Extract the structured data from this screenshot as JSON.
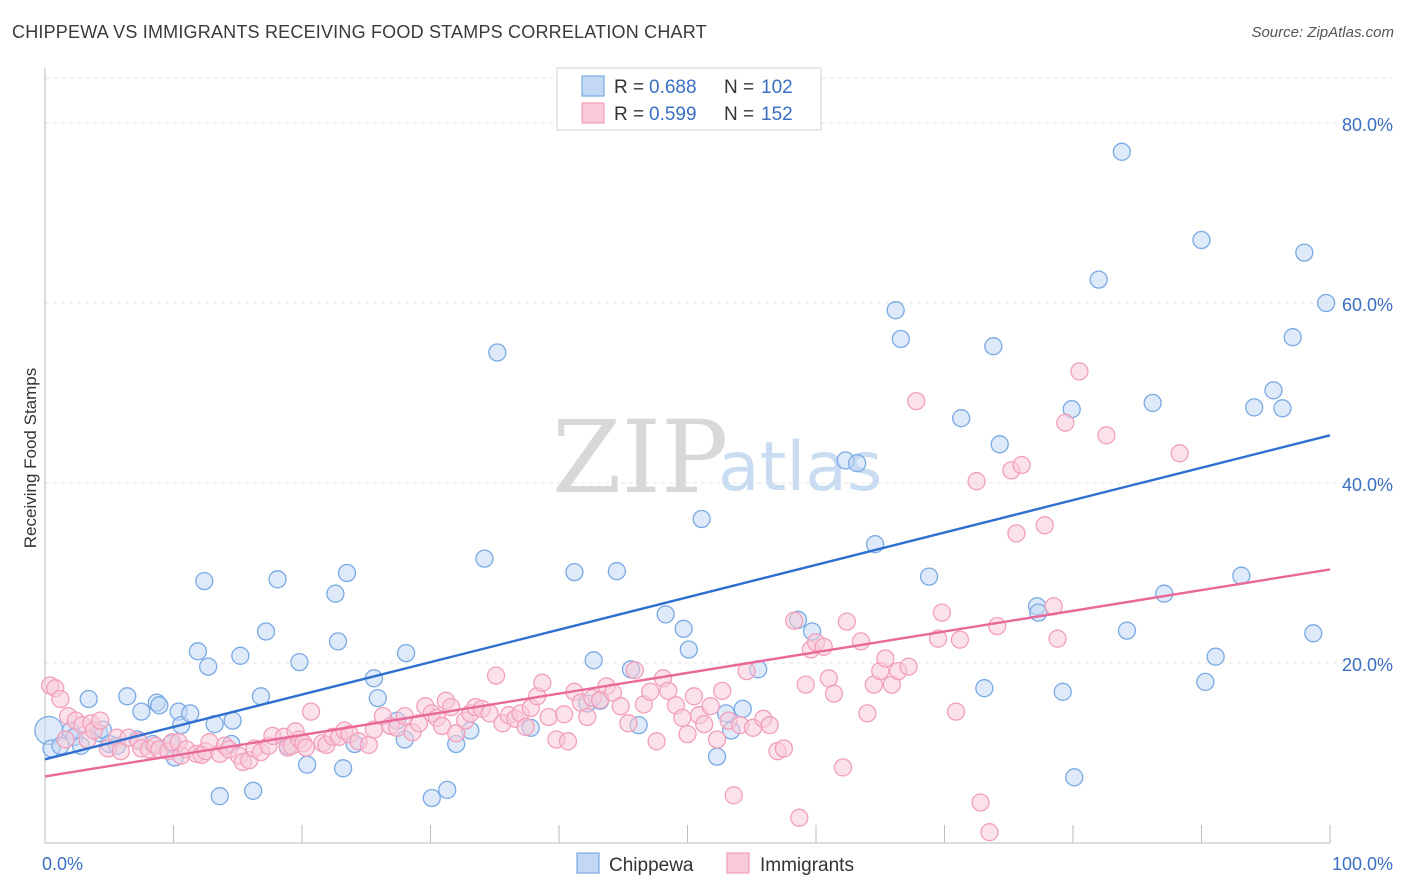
{
  "header": {
    "title": "CHIPPEWA VS IMMIGRANTS RECEIVING FOOD STAMPS CORRELATION CHART",
    "source": "Source: ZipAtlas.com"
  },
  "watermark": {
    "zip": "ZIP",
    "atlas": "atlas"
  },
  "legend": {
    "rows": [
      {
        "r_label": "R = ",
        "r_value": "0.688",
        "n_label": "N = ",
        "n_value": "102"
      },
      {
        "r_label": "R = ",
        "r_value": "0.599",
        "n_label": "N = ",
        "n_value": "152"
      }
    ]
  },
  "chart_data": {
    "type": "scatter",
    "title": "CHIPPEWA VS IMMIGRANTS RECEIVING FOOD STAMPS CORRELATION CHART",
    "xlabel": "",
    "ylabel": "Receiving Food Stamps",
    "xlim": [
      0,
      100
    ],
    "ylim": [
      0,
      85
    ],
    "x_tick_labels": [
      "0.0%",
      "100.0%"
    ],
    "y_ticks": [
      20,
      40,
      60,
      80
    ],
    "y_tick_labels": [
      "20.0%",
      "40.0%",
      "60.0%",
      "80.0%"
    ],
    "grid": true,
    "series": [
      {
        "name": "Chippewa",
        "color": "#7aaae4",
        "fill": "#c3d8f4",
        "trend": {
          "x0": 0,
          "y0": 9.3,
          "x1": 100,
          "y1": 45.3,
          "color": "#2f6fcf"
        },
        "points": [
          [
            0.3,
            12.5
          ],
          [
            0.5,
            10.5
          ],
          [
            1.2,
            10.8
          ],
          [
            2,
            12.5
          ],
          [
            2.3,
            11.8
          ],
          [
            2.8,
            10.8
          ],
          [
            3.4,
            16
          ],
          [
            4.2,
            12.2
          ],
          [
            4.5,
            12.6
          ],
          [
            5,
            11
          ],
          [
            5.6,
            10.8
          ],
          [
            6.4,
            16.3
          ],
          [
            7.2,
            11.5
          ],
          [
            7.5,
            14.6
          ],
          [
            8.4,
            11
          ],
          [
            8.7,
            15.6
          ],
          [
            8.9,
            15.3
          ],
          [
            9.8,
            11
          ],
          [
            10.1,
            9.5
          ],
          [
            10.4,
            14.6
          ],
          [
            10.6,
            13.1
          ],
          [
            11.3,
            14.4
          ],
          [
            11.9,
            21.3
          ],
          [
            12.4,
            29.1
          ],
          [
            12.7,
            19.6
          ],
          [
            13.2,
            13.2
          ],
          [
            13.6,
            5.2
          ],
          [
            14.5,
            11
          ],
          [
            14.6,
            13.6
          ],
          [
            15.2,
            20.8
          ],
          [
            16.2,
            5.8
          ],
          [
            16.8,
            16.3
          ],
          [
            17.2,
            23.5
          ],
          [
            18.1,
            29.3
          ],
          [
            18.9,
            10.8
          ],
          [
            19.8,
            20.1
          ],
          [
            20.4,
            8.7
          ],
          [
            22.6,
            27.7
          ],
          [
            22.8,
            22.4
          ],
          [
            23.2,
            8.3
          ],
          [
            23.5,
            30
          ],
          [
            24.1,
            11
          ],
          [
            25.6,
            18.3
          ],
          [
            25.9,
            16.1
          ],
          [
            27.4,
            13.6
          ],
          [
            28,
            11.5
          ],
          [
            28.1,
            21.1
          ],
          [
            30.1,
            5
          ],
          [
            31.3,
            5.9
          ],
          [
            32,
            11
          ],
          [
            33.1,
            12.5
          ],
          [
            34.2,
            31.6
          ],
          [
            35.2,
            54.5
          ],
          [
            37.8,
            12.8
          ],
          [
            41.2,
            30.1
          ],
          [
            42.2,
            15.5
          ],
          [
            42.7,
            20.3
          ],
          [
            43.2,
            15.8
          ],
          [
            44.5,
            30.2
          ],
          [
            45.6,
            19.3
          ],
          [
            46.2,
            13.1
          ],
          [
            48.3,
            25.4
          ],
          [
            49.7,
            23.8
          ],
          [
            50.1,
            21.5
          ],
          [
            51.1,
            36
          ],
          [
            52.3,
            9.6
          ],
          [
            53,
            14.4
          ],
          [
            53.4,
            12.5
          ],
          [
            54.3,
            14.9
          ],
          [
            55.5,
            19.3
          ],
          [
            58.6,
            24.8
          ],
          [
            59.7,
            23.5
          ],
          [
            62.3,
            42.5
          ],
          [
            63.2,
            42.2
          ],
          [
            64.6,
            33.2
          ],
          [
            66.2,
            59.2
          ],
          [
            66.6,
            56
          ],
          [
            68.8,
            29.6
          ],
          [
            71.3,
            47.2
          ],
          [
            73.1,
            17.2
          ],
          [
            73.8,
            55.2
          ],
          [
            74.3,
            44.3
          ],
          [
            77.2,
            26.3
          ],
          [
            77.3,
            25.6
          ],
          [
            79.2,
            16.8
          ],
          [
            79.9,
            48.2
          ],
          [
            80.1,
            7.3
          ],
          [
            82,
            62.6
          ],
          [
            83.8,
            76.8
          ],
          [
            84.2,
            23.6
          ],
          [
            86.2,
            48.9
          ],
          [
            87.1,
            27.7
          ],
          [
            90,
            67
          ],
          [
            90.3,
            17.9
          ],
          [
            91.1,
            20.7
          ],
          [
            93.1,
            29.7
          ],
          [
            94.1,
            48.4
          ],
          [
            95.6,
            50.3
          ],
          [
            96.3,
            48.3
          ],
          [
            97.1,
            56.2
          ],
          [
            98,
            65.6
          ],
          [
            98.7,
            23.3
          ],
          [
            99.7,
            60
          ]
        ]
      },
      {
        "name": "Immigrants",
        "color": "#f29fbb",
        "fill": "#f8cad9",
        "trend": {
          "x0": 0,
          "y0": 7.4,
          "x1": 100,
          "y1": 30.4,
          "color": "#e8689a"
        },
        "points": [
          [
            0.4,
            17.5
          ],
          [
            0.8,
            17.2
          ],
          [
            1.2,
            16
          ],
          [
            1.6,
            11.5
          ],
          [
            1.8,
            14.1
          ],
          [
            2.4,
            13.6
          ],
          [
            2.9,
            13.1
          ],
          [
            3.3,
            11.5
          ],
          [
            3.6,
            13.3
          ],
          [
            3.8,
            12.5
          ],
          [
            4.3,
            13.6
          ],
          [
            4.9,
            10.5
          ],
          [
            5.6,
            11.7
          ],
          [
            5.9,
            10.2
          ],
          [
            6.5,
            11.7
          ],
          [
            7.3,
            11.3
          ],
          [
            7.5,
            10.5
          ],
          [
            8.1,
            10.4
          ],
          [
            8.6,
            10.8
          ],
          [
            8.9,
            10.4
          ],
          [
            9.6,
            10.2
          ],
          [
            9.9,
            11.2
          ],
          [
            10.4,
            11.2
          ],
          [
            10.6,
            9.7
          ],
          [
            11,
            10.4
          ],
          [
            11.8,
            9.9
          ],
          [
            12.2,
            9.8
          ],
          [
            12.5,
            10.2
          ],
          [
            12.8,
            11.2
          ],
          [
            13.6,
            9.9
          ],
          [
            14,
            10.8
          ],
          [
            14.3,
            10.4
          ],
          [
            15.1,
            9.7
          ],
          [
            15.4,
            9
          ],
          [
            15.9,
            9.2
          ],
          [
            16.3,
            10.5
          ],
          [
            16.8,
            10.1
          ],
          [
            17.4,
            10.8
          ],
          [
            17.7,
            11.9
          ],
          [
            18.6,
            11.8
          ],
          [
            18.9,
            10.6
          ],
          [
            19.2,
            10.8
          ],
          [
            19.5,
            12.4
          ],
          [
            19.8,
            11.5
          ],
          [
            20.1,
            11.1
          ],
          [
            20.3,
            10.6
          ],
          [
            20.7,
            14.6
          ],
          [
            21.6,
            11.1
          ],
          [
            21.9,
            10.9
          ],
          [
            22.4,
            11.8
          ],
          [
            22.9,
            11.8
          ],
          [
            23.3,
            12.5
          ],
          [
            23.7,
            12.1
          ],
          [
            24.4,
            11.3
          ],
          [
            25.2,
            10.9
          ],
          [
            25.6,
            12.6
          ],
          [
            26.3,
            14.1
          ],
          [
            26.9,
            13
          ],
          [
            27.4,
            12.8
          ],
          [
            28,
            14.1
          ],
          [
            28.6,
            12.3
          ],
          [
            29.1,
            13.3
          ],
          [
            29.6,
            15.2
          ],
          [
            30.1,
            14.4
          ],
          [
            30.5,
            13.9
          ],
          [
            30.9,
            13
          ],
          [
            31.2,
            15.8
          ],
          [
            31.6,
            15.1
          ],
          [
            32,
            12.2
          ],
          [
            32.7,
            13.6
          ],
          [
            33.1,
            14.4
          ],
          [
            33.5,
            15.1
          ],
          [
            34,
            14.9
          ],
          [
            34.6,
            14.4
          ],
          [
            35.1,
            18.6
          ],
          [
            35.6,
            13.3
          ],
          [
            36.1,
            14.2
          ],
          [
            36.6,
            13.8
          ],
          [
            37,
            14.4
          ],
          [
            37.4,
            12.9
          ],
          [
            37.8,
            15
          ],
          [
            38.3,
            16.3
          ],
          [
            38.7,
            17.8
          ],
          [
            39.2,
            14
          ],
          [
            39.8,
            11.5
          ],
          [
            40.4,
            14.3
          ],
          [
            40.7,
            11.3
          ],
          [
            41.2,
            16.8
          ],
          [
            41.7,
            15.6
          ],
          [
            42.2,
            14
          ],
          [
            42.6,
            16.1
          ],
          [
            43.2,
            15.9
          ],
          [
            43.7,
            17.4
          ],
          [
            44.2,
            16.7
          ],
          [
            44.8,
            15.2
          ],
          [
            45.4,
            13.3
          ],
          [
            45.9,
            19.2
          ],
          [
            46.6,
            15.4
          ],
          [
            47.1,
            16.8
          ],
          [
            47.6,
            11.3
          ],
          [
            48.1,
            18.3
          ],
          [
            48.5,
            16.9
          ],
          [
            49.1,
            15.3
          ],
          [
            49.6,
            13.9
          ],
          [
            50,
            12.1
          ],
          [
            50.5,
            16.3
          ],
          [
            50.9,
            14.2
          ],
          [
            51.3,
            13.2
          ],
          [
            51.8,
            15.2
          ],
          [
            52.3,
            11.5
          ],
          [
            52.7,
            16.9
          ],
          [
            53.2,
            13.6
          ],
          [
            53.6,
            5.3
          ],
          [
            54.1,
            13.1
          ],
          [
            54.6,
            19.1
          ],
          [
            55.1,
            12.8
          ],
          [
            55.9,
            13.8
          ],
          [
            56.4,
            13.1
          ],
          [
            57,
            10.2
          ],
          [
            57.5,
            10.5
          ],
          [
            58.3,
            24.7
          ],
          [
            58.7,
            2.8
          ],
          [
            59.2,
            17.6
          ],
          [
            59.6,
            21.5
          ],
          [
            60,
            22.3
          ],
          [
            60.6,
            21.8
          ],
          [
            61,
            18.3
          ],
          [
            61.4,
            16.6
          ],
          [
            62.1,
            8.4
          ],
          [
            62.4,
            24.6
          ],
          [
            63.5,
            22.4
          ],
          [
            64,
            14.4
          ],
          [
            64.5,
            17.6
          ],
          [
            65,
            19.1
          ],
          [
            65.4,
            20.5
          ],
          [
            65.9,
            17.6
          ],
          [
            66.4,
            19.1
          ],
          [
            67.2,
            19.6
          ],
          [
            67.8,
            49.1
          ],
          [
            69.5,
            22.7
          ],
          [
            69.8,
            25.6
          ],
          [
            70.9,
            14.6
          ],
          [
            71.2,
            22.6
          ],
          [
            72.5,
            40.2
          ],
          [
            72.8,
            4.5
          ],
          [
            73.5,
            1.2
          ],
          [
            74.1,
            24.1
          ],
          [
            75.2,
            41.4
          ],
          [
            75.6,
            34.4
          ],
          [
            76,
            42
          ],
          [
            77.8,
            35.3
          ],
          [
            78.5,
            26.3
          ],
          [
            78.8,
            22.7
          ],
          [
            79.4,
            46.7
          ],
          [
            80.5,
            52.4
          ],
          [
            82.6,
            45.3
          ],
          [
            88.3,
            43.3
          ]
        ]
      }
    ]
  }
}
